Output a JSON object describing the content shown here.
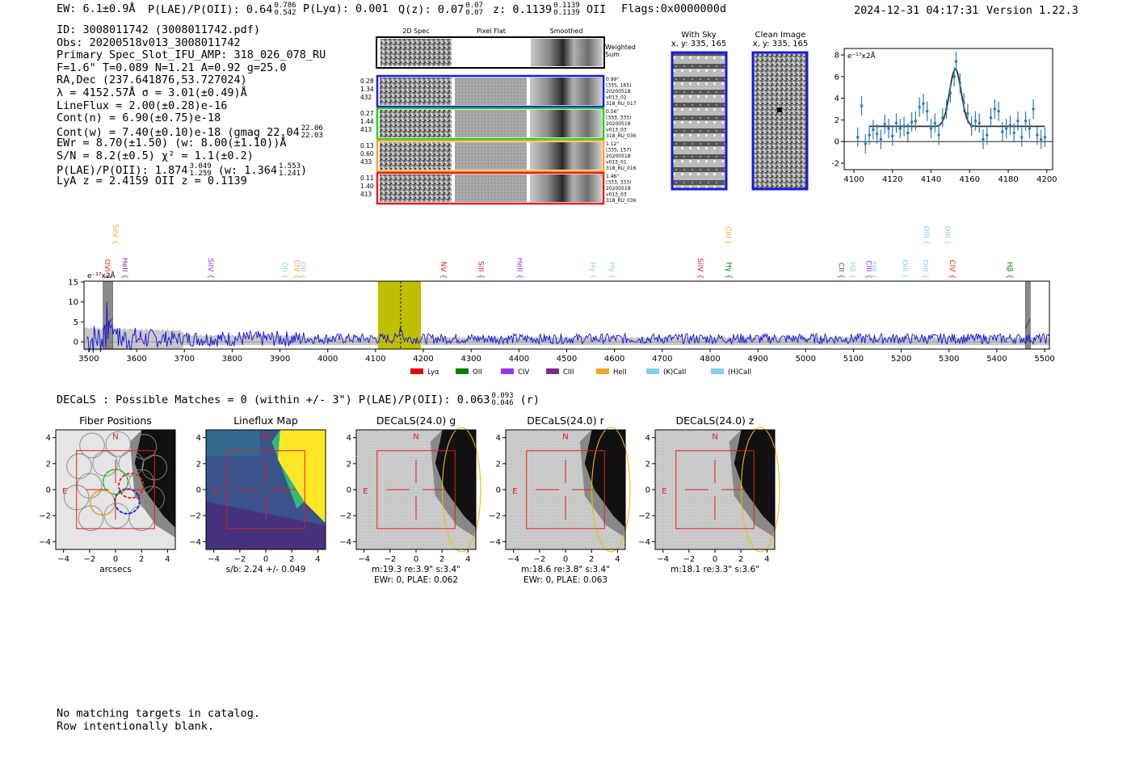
{
  "header": {
    "ew": "EW: 6.1±0.9Å",
    "plae_label": "P(LAE)/P(OII): 0.64",
    "plae_hi": "0.786",
    "plae_lo": "0.542",
    "plya": "P(Lyα): 0.001",
    "qz_label": "Q(z): 0.07",
    "qz_hi": "0.07",
    "qz_lo": "0.07",
    "z_label": "z: 0.1139",
    "z_hi": "0.1139",
    "z_lo": "0.1139",
    "z_line": "OII",
    "flags": "Flags:0x0000000d",
    "timestamp": "2024-12-31 04:17:31",
    "version": "Version 1.22.3"
  },
  "info": {
    "line1": "ID: 3008011742 (3008011742.pdf)",
    "line2": "Obs: 20200518v013_3008011742",
    "line3": "Primary Spec_Slot_IFU_AMP: 318_026_078_RU",
    "line4": "F=1.6\"  T=0.089  N=1.21  A=0.92  g=25.0",
    "line5": "RA,Dec (237.641876,53.727024)",
    "line6": "λ = 4152.57Å  σ = 3.01(±0.49)Å",
    "line7": "LineFlux = 2.00(±0.28)e-16",
    "line8": "Cont(n) = 6.90(±0.75)e-18",
    "line9": "Cont(w) = 7.40(±0.10)e-18 (gmag 22.04",
    "line9_hi": "22.06",
    "line9_lo": "22.03",
    "line10": "EWr = 8.70(±1.50) (w: 8.00(±1.10))Å",
    "line11": "S/N = 8.2(±0.5)  χ² = 1.1(±0.2)",
    "line12a": "P(LAE)/P(OII): 1.874",
    "line12a_hi": "3.049",
    "line12a_lo": "1.259",
    "line12b": "(w: 1.364",
    "line12b_hi": "1.553",
    "line12b_lo": "1.241",
    "line13": "LyA z = 2.4159  OII z = 0.1139"
  },
  "cutouts": {
    "col1": "2D Spec",
    "col2": "Pixel Flat",
    "col3": "Smoothed",
    "weighted_sum": [
      "Weighted",
      "Sum"
    ],
    "rows": [
      {
        "left": [
          "0.28",
          "1.34",
          "432"
        ],
        "right": [
          "0.99\"",
          "(335, 165)",
          "20200518",
          "v013_02",
          "318_RU_017"
        ],
        "color": "#1a1ae0"
      },
      {
        "left": [
          "0.27",
          "1.44",
          "413"
        ],
        "right": [
          "0.56\"",
          "(333, 333)",
          "20200518",
          "v013_03",
          "318_RU_036"
        ],
        "color": "#22cc22"
      },
      {
        "left": [
          "0.13",
          "0.60",
          "433"
        ],
        "right": [
          "1.12\"",
          "(335, 157)",
          "20200518",
          "v013_01",
          "318_RU_016"
        ],
        "color": "#f5a623"
      },
      {
        "left": [
          "0.11",
          "1.40",
          "413"
        ],
        "right": [
          "1.46\"",
          "(333, 333)",
          "20200518",
          "v013_03",
          "318_RU_036"
        ],
        "color": "#e02020"
      }
    ],
    "with_sky_title": "With Sky",
    "with_sky_coords": "x, y: 335, 165",
    "clean_title": "Clean Image",
    "clean_coords": "x, y: 335, 165"
  },
  "chart_data": [
    {
      "type": "line",
      "name": "zoom-spectrum",
      "title": "",
      "unit_label": "e⁻¹⁷x2Å",
      "xlim": [
        4095,
        4203
      ],
      "ylim": [
        -2.6,
        8.6
      ],
      "x_ticks": [
        4100,
        4120,
        4140,
        4160,
        4180,
        4200
      ],
      "y_ticks": [
        -2,
        0,
        2,
        4,
        6,
        8
      ],
      "continuum": 1.4,
      "fit": {
        "center": 4152.6,
        "sigma": 3.0,
        "amplitude": 5.3,
        "x_start": 4108,
        "x_end": 4199
      },
      "points": [
        {
          "x": 4102,
          "y": 0.4,
          "e": 0.9
        },
        {
          "x": 4104,
          "y": 3.3,
          "e": 0.9
        },
        {
          "x": 4106,
          "y": -0.2,
          "e": 0.9
        },
        {
          "x": 4108,
          "y": 0.6,
          "e": 0.9
        },
        {
          "x": 4110,
          "y": 1.1,
          "e": 0.9
        },
        {
          "x": 4112,
          "y": 0.7,
          "e": 0.9
        },
        {
          "x": 4114,
          "y": 0.2,
          "e": 0.9
        },
        {
          "x": 4116,
          "y": 1.6,
          "e": 0.9
        },
        {
          "x": 4118,
          "y": 1.2,
          "e": 0.9
        },
        {
          "x": 4120,
          "y": 0.5,
          "e": 0.9
        },
        {
          "x": 4122,
          "y": 1.7,
          "e": 0.9
        },
        {
          "x": 4124,
          "y": 1.2,
          "e": 0.9
        },
        {
          "x": 4126,
          "y": 1.4,
          "e": 0.9
        },
        {
          "x": 4128,
          "y": 0.8,
          "e": 0.9
        },
        {
          "x": 4130,
          "y": 1.8,
          "e": 0.9
        },
        {
          "x": 4132,
          "y": 1.9,
          "e": 0.9
        },
        {
          "x": 4134,
          "y": 3.2,
          "e": 0.9
        },
        {
          "x": 4136,
          "y": 3.5,
          "e": 0.9
        },
        {
          "x": 4138,
          "y": 2.8,
          "e": 0.9
        },
        {
          "x": 4140,
          "y": 1.2,
          "e": 0.9
        },
        {
          "x": 4142,
          "y": 1.7,
          "e": 0.9
        },
        {
          "x": 4144,
          "y": 0.6,
          "e": 0.9
        },
        {
          "x": 4146,
          "y": 2.2,
          "e": 0.9
        },
        {
          "x": 4148,
          "y": 3.0,
          "e": 0.9
        },
        {
          "x": 4150,
          "y": 4.5,
          "e": 0.9
        },
        {
          "x": 4152,
          "y": 6.0,
          "e": 0.9
        },
        {
          "x": 4153,
          "y": 7.4,
          "e": 0.9
        },
        {
          "x": 4155,
          "y": 5.4,
          "e": 0.9
        },
        {
          "x": 4157,
          "y": 3.6,
          "e": 0.9
        },
        {
          "x": 4159,
          "y": 2.6,
          "e": 0.9
        },
        {
          "x": 4161,
          "y": 1.4,
          "e": 0.9
        },
        {
          "x": 4163,
          "y": 1.9,
          "e": 0.9
        },
        {
          "x": 4165,
          "y": 1.7,
          "e": 0.9
        },
        {
          "x": 4167,
          "y": 0.2,
          "e": 0.9
        },
        {
          "x": 4169,
          "y": 0.6,
          "e": 0.9
        },
        {
          "x": 4171,
          "y": 2.2,
          "e": 0.9
        },
        {
          "x": 4173,
          "y": 3.0,
          "e": 0.9
        },
        {
          "x": 4175,
          "y": 2.8,
          "e": 0.9
        },
        {
          "x": 4177,
          "y": 0.9,
          "e": 0.9
        },
        {
          "x": 4179,
          "y": 1.2,
          "e": 0.9
        },
        {
          "x": 4181,
          "y": 1.5,
          "e": 0.9
        },
        {
          "x": 4183,
          "y": 0.8,
          "e": 0.9
        },
        {
          "x": 4185,
          "y": 1.9,
          "e": 0.9
        },
        {
          "x": 4187,
          "y": 0.4,
          "e": 0.9
        },
        {
          "x": 4189,
          "y": 1.9,
          "e": 0.9
        },
        {
          "x": 4191,
          "y": 1.2,
          "e": 0.9
        },
        {
          "x": 4193,
          "y": 3.0,
          "e": 0.9
        },
        {
          "x": 4195,
          "y": 0.6,
          "e": 0.9
        },
        {
          "x": 4197,
          "y": 0.2,
          "e": 0.9
        },
        {
          "x": 4199,
          "y": 0.4,
          "e": 0.9
        }
      ]
    },
    {
      "type": "line",
      "name": "full-spectrum",
      "title": "",
      "unit_label": "e⁻¹⁷x2Å",
      "xlim": [
        3490,
        5510
      ],
      "ylim": [
        -1.8,
        15.2
      ],
      "x_ticks": [
        3500,
        3600,
        3700,
        3800,
        3900,
        4000,
        4100,
        4200,
        4300,
        4400,
        4500,
        4600,
        4700,
        4800,
        4900,
        5000,
        5100,
        5200,
        5300,
        5400,
        5500
      ],
      "y_ticks": [
        0,
        5,
        10,
        15
      ],
      "highlight_range": [
        4105,
        4195
      ],
      "line_center": 4152.6,
      "masked_ranges": [
        [
          3530,
          3550
        ],
        [
          5460,
          5470
        ]
      ],
      "line_marks": [
        {
          "label": "SiIV",
          "x": 3546,
          "color": "#f5a623",
          "row": "top"
        },
        {
          "label": "OVI",
          "x": 3529,
          "color": "#e02020",
          "row": "mid"
        },
        {
          "label": "HeII",
          "x": 3565,
          "color": "#7b2d8b",
          "row": "mid"
        },
        {
          "label": "SiIV",
          "x": 3745,
          "color": "#9b30ff",
          "row": "mid"
        },
        {
          "label": "OII",
          "x": 3900,
          "color": "#87ceeb",
          "row": "mid"
        },
        {
          "label": "CIV",
          "x": 3925,
          "color": "#f5a623",
          "row": "mid"
        },
        {
          "label": "OII",
          "x": 3938,
          "color": "#87ceeb",
          "row": "mid"
        },
        {
          "label": "NV",
          "x": 4232,
          "color": "#e02020",
          "row": "mid"
        },
        {
          "label": "SiII",
          "x": 4311,
          "color": "#e02020",
          "row": "mid"
        },
        {
          "label": "HeII",
          "x": 4392,
          "color": "#9b30ff",
          "row": "mid"
        },
        {
          "label": "Hγ",
          "x": 4545,
          "color": "#87ceeb",
          "row": "mid"
        },
        {
          "label": "Hγ",
          "x": 4585,
          "color": "#87ceeb",
          "row": "mid"
        },
        {
          "label": "SiIV",
          "x": 4770,
          "color": "#e02020",
          "row": "mid"
        },
        {
          "label": "CIII",
          "x": 4828,
          "color": "#f5a623",
          "row": "top"
        },
        {
          "label": "Hγ",
          "x": 4830,
          "color": "#008000",
          "row": "mid"
        },
        {
          "label": "CII",
          "x": 5065,
          "color": "#7b2d8b",
          "row": "mid"
        },
        {
          "label": "Hβ",
          "x": 5088,
          "color": "#87ceeb",
          "row": "mid"
        },
        {
          "label": "CIII",
          "x": 5122,
          "color": "#9b30ff",
          "row": "mid"
        },
        {
          "label": "Hβ",
          "x": 5133,
          "color": "#87ceeb",
          "row": "mid"
        },
        {
          "label": "OIII",
          "x": 5198,
          "color": "#87ceeb",
          "row": "mid"
        },
        {
          "label": "OIII",
          "x": 5240,
          "color": "#87ceeb",
          "row": "mid"
        },
        {
          "label": "OIII",
          "x": 5243,
          "color": "#87ceeb",
          "row": "top"
        },
        {
          "label": "CIV",
          "x": 5297,
          "color": "#e02020",
          "row": "mid"
        },
        {
          "label": "OIII",
          "x": 5287,
          "color": "#87ceeb",
          "row": "top"
        },
        {
          "label": "Hβ",
          "x": 5417,
          "color": "#008000",
          "row": "mid"
        }
      ],
      "legend": [
        {
          "label": "Lyα",
          "color": "#e8000b"
        },
        {
          "label": "OII",
          "color": "#008000"
        },
        {
          "label": "CIV",
          "color": "#9b30ff"
        },
        {
          "label": "CIII",
          "color": "#7b2d8b"
        },
        {
          "label": "HeII",
          "color": "#f5a623"
        },
        {
          "label": "(K)CaII",
          "color": "#87ceeb"
        },
        {
          "label": "(H)CaII",
          "color": "#87ceeb"
        }
      ]
    }
  ],
  "decals": {
    "summary": "DECaLS : Possible Matches = 0 (within +/- 3\")  P(LAE)/P(OII): 0.063",
    "summary_hi": "0.093",
    "summary_lo": "0.046",
    "summary_band": "(r)",
    "panels": [
      {
        "title": "Fiber Positions",
        "cap1": "arcsecs",
        "cap2": "",
        "kind": "fibers"
      },
      {
        "title": "Lineflux Map",
        "cap1": "s/b: 2.24 +/- 0.049",
        "cap2": "",
        "kind": "lineflux"
      },
      {
        "title": "DECaLS(24.0) g",
        "cap1": "m:19.3  re:3.9\"  s:3.4\"",
        "cap2": "EWr: 0, PLAE: 0.062",
        "kind": "image"
      },
      {
        "title": "DECaLS(24.0) r",
        "cap1": "m:18.6  re:3.8\"  s:3.4\"",
        "cap2": "EWr: 0, PLAE: 0.063",
        "kind": "image"
      },
      {
        "title": "DECaLS(24.0) z",
        "cap1": "m:18.1  re:3.3\"  s:3.6\"",
        "cap2": "",
        "kind": "image"
      }
    ],
    "axis_ticks": [
      "4",
      "2",
      "0",
      "−2",
      "−4"
    ],
    "x_ticks": [
      "−4",
      "−2",
      "0",
      "2",
      "4"
    ],
    "north": "N",
    "east": "E"
  },
  "footer": {
    "line1": "No matching targets in catalog.",
    "line2": "Row intentionally blank."
  }
}
